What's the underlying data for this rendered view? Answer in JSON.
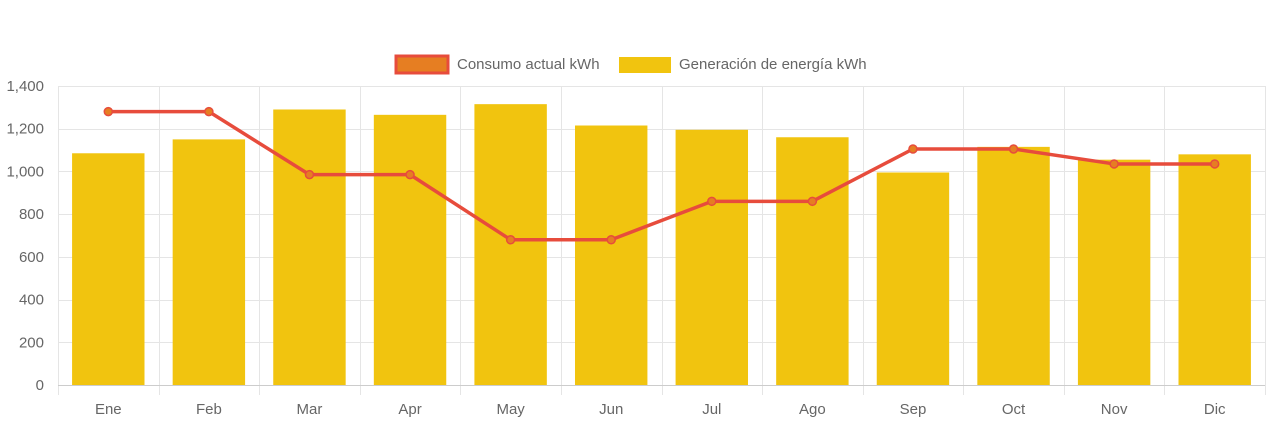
{
  "chart_data": {
    "type": "bar",
    "categories": [
      "Ene",
      "Feb",
      "Mar",
      "Apr",
      "May",
      "Jun",
      "Jul",
      "Ago",
      "Sep",
      "Oct",
      "Nov",
      "Dic"
    ],
    "ylim": [
      0,
      1400
    ],
    "y_ticks": [
      0,
      200,
      400,
      600,
      800,
      1000,
      1200,
      1400
    ],
    "y_tick_labels": [
      "0",
      "200",
      "400",
      "600",
      "800",
      "1,000",
      "1,200",
      "1,400"
    ],
    "grid": true,
    "legend_position": "top-center",
    "series": [
      {
        "name": "Consumo actual kWh",
        "type": "line",
        "color": "#e74c3c",
        "fill_color": "#e67e22",
        "values": [
          1280,
          1280,
          985,
          985,
          680,
          680,
          860,
          860,
          1105,
          1105,
          1035,
          1035
        ]
      },
      {
        "name": "Generación de energía kWh",
        "type": "bar",
        "color": "#f1c40f",
        "values": [
          1085,
          1150,
          1290,
          1265,
          1315,
          1215,
          1195,
          1160,
          995,
          1115,
          1055,
          1080
        ]
      }
    ]
  }
}
